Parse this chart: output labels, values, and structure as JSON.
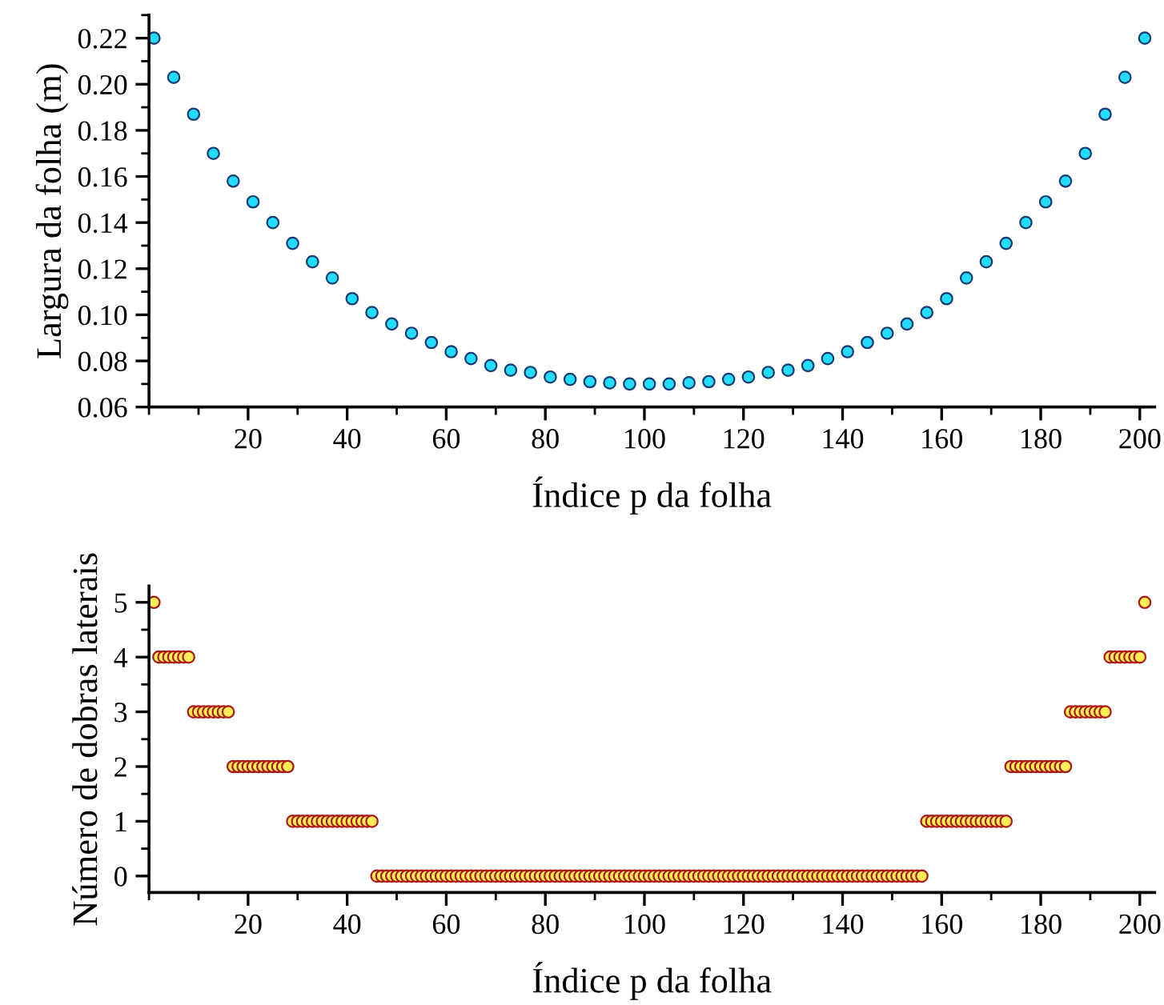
{
  "chart_data": [
    {
      "type": "scatter",
      "xlabel": "Índice p da folha",
      "ylabel": "Largura da folha (m)",
      "xlim": [
        0,
        203
      ],
      "xticks": [
        20,
        40,
        60,
        80,
        100,
        120,
        140,
        160,
        180,
        200
      ],
      "ylim": [
        0.06,
        0.23
      ],
      "yticks": [
        {
          "value": 0.06,
          "label": "0.06"
        },
        {
          "value": 0.08,
          "label": "0.08"
        },
        {
          "value": 0.1,
          "label": "0.10"
        },
        {
          "value": 0.12,
          "label": "0.12"
        },
        {
          "value": 0.14,
          "label": "0.14"
        },
        {
          "value": 0.16,
          "label": "0.16"
        },
        {
          "value": 0.18,
          "label": "0.18"
        },
        {
          "value": 0.2,
          "label": "0.20"
        },
        {
          "value": 0.22,
          "label": "0.22"
        }
      ],
      "grid": false,
      "legend": false,
      "marker": "circle",
      "series": [
        {
          "color": "#22ddff",
          "x": [
            1,
            5,
            9,
            13,
            17,
            21,
            25,
            29,
            33,
            37,
            41,
            45,
            49,
            53,
            57,
            61,
            65,
            69,
            73,
            77,
            81,
            85,
            89,
            93,
            97,
            101,
            105,
            109,
            113,
            117,
            121,
            125,
            129,
            133,
            137,
            141,
            145,
            149,
            153,
            157,
            161,
            165,
            169,
            173,
            177,
            181,
            185,
            189,
            193,
            197,
            201
          ],
          "values": [
            0.22,
            0.203,
            0.187,
            0.17,
            0.158,
            0.149,
            0.14,
            0.131,
            0.123,
            0.116,
            0.107,
            0.101,
            0.096,
            0.092,
            0.088,
            0.084,
            0.081,
            0.078,
            0.076,
            0.075,
            0.073,
            0.072,
            0.071,
            0.0705,
            0.07,
            0.07,
            0.07,
            0.0705,
            0.071,
            0.072,
            0.073,
            0.075,
            0.076,
            0.078,
            0.081,
            0.084,
            0.088,
            0.092,
            0.096,
            0.101,
            0.107,
            0.116,
            0.123,
            0.131,
            0.14,
            0.149,
            0.158,
            0.17,
            0.187,
            0.203,
            0.22
          ]
        }
      ]
    },
    {
      "type": "scatter",
      "xlabel": "Índice p da folha",
      "ylabel": "Número de dobras laterais",
      "xlim": [
        0,
        203
      ],
      "xticks": [
        20,
        40,
        60,
        80,
        100,
        120,
        140,
        160,
        180,
        200
      ],
      "ylim": [
        -0.3,
        5.3
      ],
      "yticks": [
        0,
        1,
        2,
        3,
        4,
        5
      ],
      "grid": false,
      "legend": false,
      "marker": "circle",
      "series": [
        {
          "color": "#ffee55",
          "x": [
            1,
            2,
            3,
            4,
            5,
            6,
            7,
            8,
            9,
            10,
            11,
            12,
            13,
            14,
            15,
            16,
            17,
            18,
            19,
            20,
            21,
            22,
            23,
            24,
            25,
            26,
            27,
            28,
            29,
            30,
            31,
            32,
            33,
            34,
            35,
            36,
            37,
            38,
            39,
            40,
            41,
            42,
            43,
            44,
            45,
            46,
            47,
            48,
            49,
            50,
            51,
            52,
            53,
            54,
            55,
            56,
            57,
            58,
            59,
            60,
            61,
            62,
            63,
            64,
            65,
            66,
            67,
            68,
            69,
            70,
            71,
            72,
            73,
            74,
            75,
            76,
            77,
            78,
            79,
            80,
            81,
            82,
            83,
            84,
            85,
            86,
            87,
            88,
            89,
            90,
            91,
            92,
            93,
            94,
            95,
            96,
            97,
            98,
            99,
            100,
            101,
            102,
            103,
            104,
            105,
            106,
            107,
            108,
            109,
            110,
            111,
            112,
            113,
            114,
            115,
            116,
            117,
            118,
            119,
            120,
            121,
            122,
            123,
            124,
            125,
            126,
            127,
            128,
            129,
            130,
            131,
            132,
            133,
            134,
            135,
            136,
            137,
            138,
            139,
            140,
            141,
            142,
            143,
            144,
            145,
            146,
            147,
            148,
            149,
            150,
            151,
            152,
            153,
            154,
            155,
            156,
            157,
            158,
            159,
            160,
            161,
            162,
            163,
            164,
            165,
            166,
            167,
            168,
            169,
            170,
            171,
            172,
            173,
            174,
            175,
            176,
            177,
            178,
            179,
            180,
            181,
            182,
            183,
            184,
            185,
            186,
            187,
            188,
            189,
            190,
            191,
            192,
            193,
            194,
            195,
            196,
            197,
            198,
            199,
            200,
            201
          ],
          "values": [
            5,
            4,
            4,
            4,
            4,
            4,
            4,
            4,
            3,
            3,
            3,
            3,
            3,
            3,
            3,
            3,
            2,
            2,
            2,
            2,
            2,
            2,
            2,
            2,
            2,
            2,
            2,
            2,
            1,
            1,
            1,
            1,
            1,
            1,
            1,
            1,
            1,
            1,
            1,
            1,
            1,
            1,
            1,
            1,
            1,
            0,
            0,
            0,
            0,
            0,
            0,
            0,
            0,
            0,
            0,
            0,
            0,
            0,
            0,
            0,
            0,
            0,
            0,
            0,
            0,
            0,
            0,
            0,
            0,
            0,
            0,
            0,
            0,
            0,
            0,
            0,
            0,
            0,
            0,
            0,
            0,
            0,
            0,
            0,
            0,
            0,
            0,
            0,
            0,
            0,
            0,
            0,
            0,
            0,
            0,
            0,
            0,
            0,
            0,
            0,
            0,
            0,
            0,
            0,
            0,
            0,
            0,
            0,
            0,
            0,
            0,
            0,
            0,
            0,
            0,
            0,
            0,
            0,
            0,
            0,
            0,
            0,
            0,
            0,
            0,
            0,
            0,
            0,
            0,
            0,
            0,
            0,
            0,
            0,
            0,
            0,
            0,
            0,
            0,
            0,
            0,
            0,
            0,
            0,
            0,
            0,
            0,
            0,
            0,
            0,
            0,
            0,
            0,
            0,
            0,
            0,
            1,
            1,
            1,
            1,
            1,
            1,
            1,
            1,
            1,
            1,
            1,
            1,
            1,
            1,
            1,
            1,
            1,
            2,
            2,
            2,
            2,
            2,
            2,
            2,
            2,
            2,
            2,
            2,
            2,
            3,
            3,
            3,
            3,
            3,
            3,
            3,
            3,
            4,
            4,
            4,
            4,
            4,
            4,
            4,
            5
          ]
        }
      ]
    }
  ]
}
